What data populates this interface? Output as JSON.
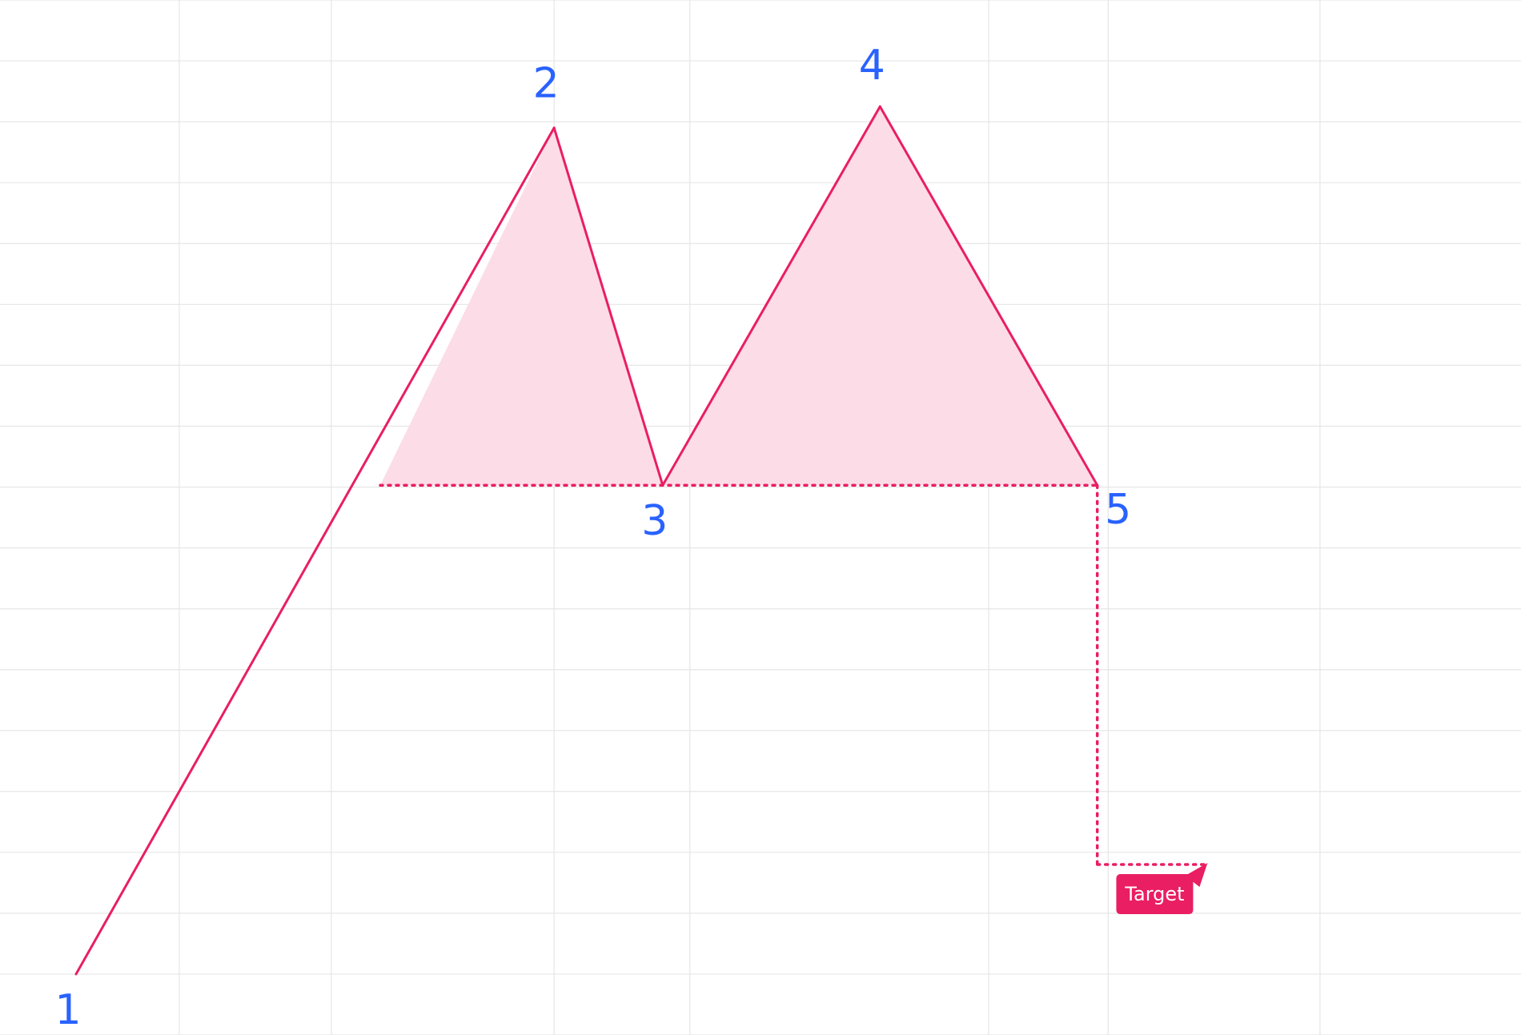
{
  "chart_data": {
    "type": "line",
    "title": "",
    "pattern": "double top",
    "x_range": [
      0,
      14
    ],
    "y_range": [
      0,
      17
    ],
    "grid": true,
    "points": [
      {
        "label": "1",
        "x": 0.7,
        "y": 1.0
      },
      {
        "label": "2",
        "x": 5.1,
        "y": 14.9
      },
      {
        "label": "3",
        "x": 6.1,
        "y": 9.03
      },
      {
        "label": "4",
        "x": 8.1,
        "y": 15.25
      },
      {
        "label": "5",
        "x": 10.1,
        "y": 9.03
      }
    ],
    "neckline": {
      "x_start": 3.5,
      "x_end": 10.1,
      "y": 9.03,
      "style": "dotted"
    },
    "target": {
      "label": "Target",
      "x": 10.1,
      "x_end": 11.1,
      "y": 2.8,
      "style": "dotted"
    },
    "colors": {
      "line": "#e91e63",
      "fill": "#fcdce6",
      "label": "#2962ff",
      "grid": "#e6e6e6",
      "target_bg": "#e91e63",
      "target_text": "#ffffff"
    }
  }
}
